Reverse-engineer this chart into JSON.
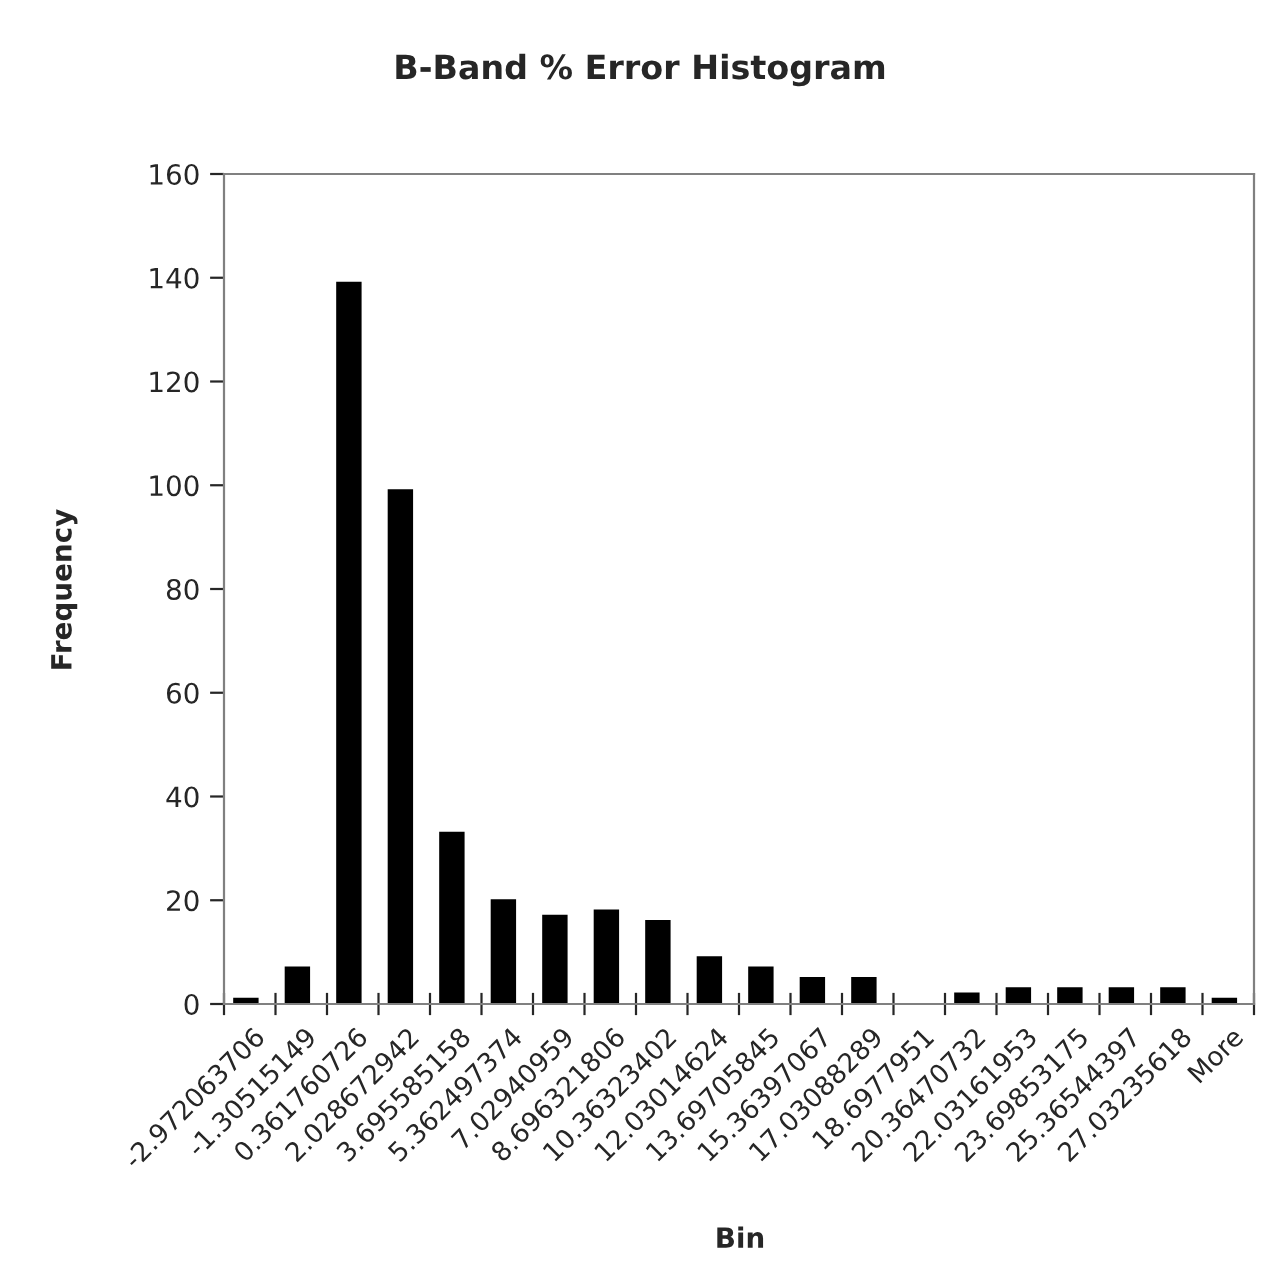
{
  "chart_data": {
    "type": "bar",
    "title": "B-Band % Error Histogram",
    "xlabel": "Bin",
    "ylabel": "Frequency",
    "categories": [
      "-2.972063706",
      "-1.30515149",
      "0.361760726",
      "2.028672942",
      "3.695585158",
      "5.362497374",
      "7.02940959",
      "8.696321806",
      "10.36323402",
      "12.03014624",
      "13.69705845",
      "15.36397067",
      "17.03088289",
      "18.6977951",
      "20.36470732",
      "22.03161953",
      "23.69853175",
      "25.36544397",
      "27.03235618",
      "More"
    ],
    "values": [
      1,
      7,
      139,
      99,
      33,
      20,
      17,
      18,
      16,
      9,
      7,
      5,
      5,
      0,
      2,
      3,
      3,
      3,
      3,
      1
    ],
    "color": "#000000",
    "ylim": [
      0,
      160
    ],
    "yticks": [
      0,
      20,
      40,
      60,
      80,
      100,
      120,
      140,
      160
    ],
    "grid": false,
    "legend": false
  }
}
